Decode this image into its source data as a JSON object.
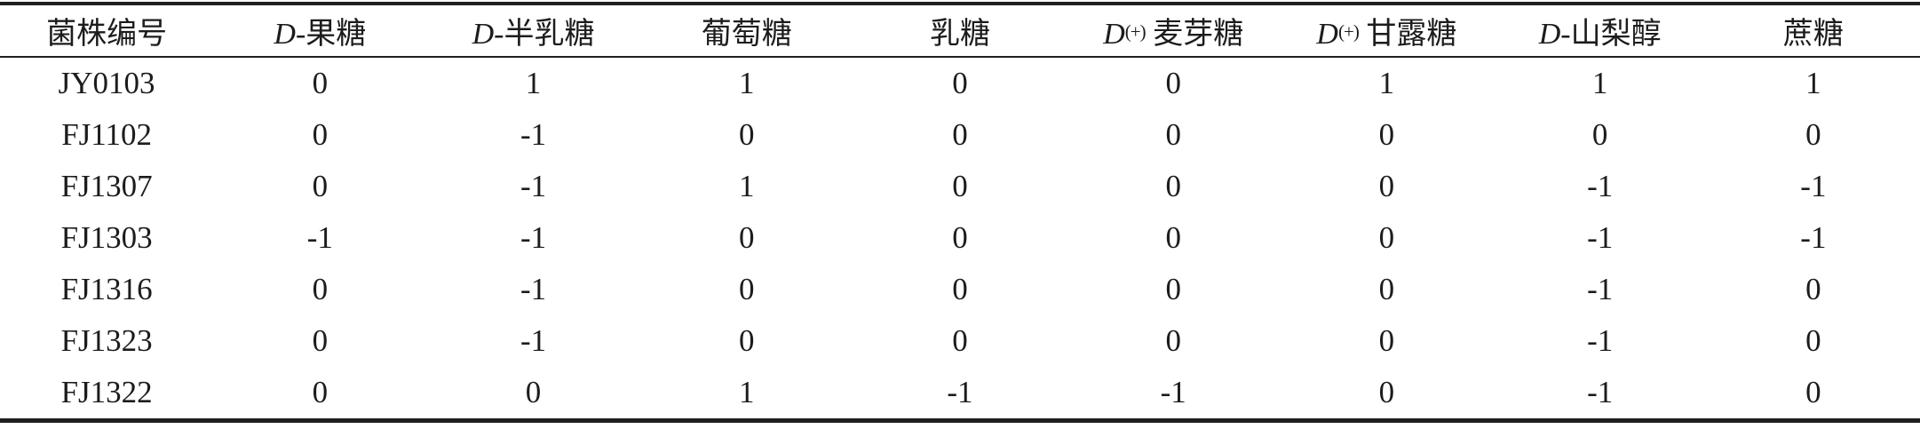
{
  "table": {
    "name": "strain-sugar-fermentation-table",
    "header": [
      {
        "latin": "",
        "sup": "",
        "cjk": "菌株编号"
      },
      {
        "latin": "D",
        "sup": "",
        "cjk": "-果糖"
      },
      {
        "latin": "D",
        "sup": "",
        "cjk": "-半乳糖"
      },
      {
        "latin": "",
        "sup": "",
        "cjk": "葡萄糖"
      },
      {
        "latin": "",
        "sup": "",
        "cjk": "乳糖"
      },
      {
        "latin": "D",
        "sup": "(+)",
        "cjk": " 麦芽糖"
      },
      {
        "latin": "D",
        "sup": "(+)",
        "cjk": " 甘露糖"
      },
      {
        "latin": "D",
        "sup": "",
        "cjk": "-山梨醇"
      },
      {
        "latin": "",
        "sup": "",
        "cjk": "蔗糖"
      }
    ],
    "rows": [
      {
        "id": "JY0103",
        "values": [
          "0",
          "1",
          "1",
          "0",
          "0",
          "1",
          "1",
          "1"
        ]
      },
      {
        "id": "FJ1102",
        "values": [
          "0",
          "-1",
          "0",
          "0",
          "0",
          "0",
          "0",
          "0"
        ]
      },
      {
        "id": "FJ1307",
        "values": [
          "0",
          "-1",
          "1",
          "0",
          "0",
          "0",
          "-1",
          "-1"
        ]
      },
      {
        "id": "FJ1303",
        "values": [
          "-1",
          "-1",
          "0",
          "0",
          "0",
          "0",
          "-1",
          "-1"
        ]
      },
      {
        "id": "FJ1316",
        "values": [
          "0",
          "-1",
          "0",
          "0",
          "0",
          "0",
          "-1",
          "0"
        ]
      },
      {
        "id": "FJ1323",
        "values": [
          "0",
          "-1",
          "0",
          "0",
          "0",
          "0",
          "-1",
          "0"
        ]
      },
      {
        "id": "FJ1322",
        "values": [
          "0",
          "0",
          "1",
          "-1",
          "-1",
          "0",
          "-1",
          "0"
        ]
      }
    ]
  },
  "chart_data": {
    "type": "table",
    "columns": [
      "菌株编号",
      "D-果糖",
      "D-半乳糖",
      "葡萄糖",
      "乳糖",
      "D(+)麦芽糖",
      "D(+)甘露糖",
      "D-山梨醇",
      "蔗糖"
    ],
    "rows": [
      [
        "JY0103",
        0,
        1,
        1,
        0,
        0,
        1,
        1,
        1
      ],
      [
        "FJ1102",
        0,
        -1,
        0,
        0,
        0,
        0,
        0,
        0
      ],
      [
        "FJ1307",
        0,
        -1,
        1,
        0,
        0,
        0,
        -1,
        -1
      ],
      [
        "FJ1303",
        -1,
        -1,
        0,
        0,
        0,
        0,
        -1,
        -1
      ],
      [
        "FJ1316",
        0,
        -1,
        0,
        0,
        0,
        0,
        -1,
        0
      ],
      [
        "FJ1323",
        0,
        -1,
        0,
        0,
        0,
        0,
        -1,
        0
      ],
      [
        "FJ1322",
        0,
        0,
        1,
        -1,
        -1,
        0,
        -1,
        0
      ]
    ]
  },
  "colors": {
    "text": "#1c1c1c",
    "rule": "#1f1f1f",
    "background": "#ffffff"
  }
}
